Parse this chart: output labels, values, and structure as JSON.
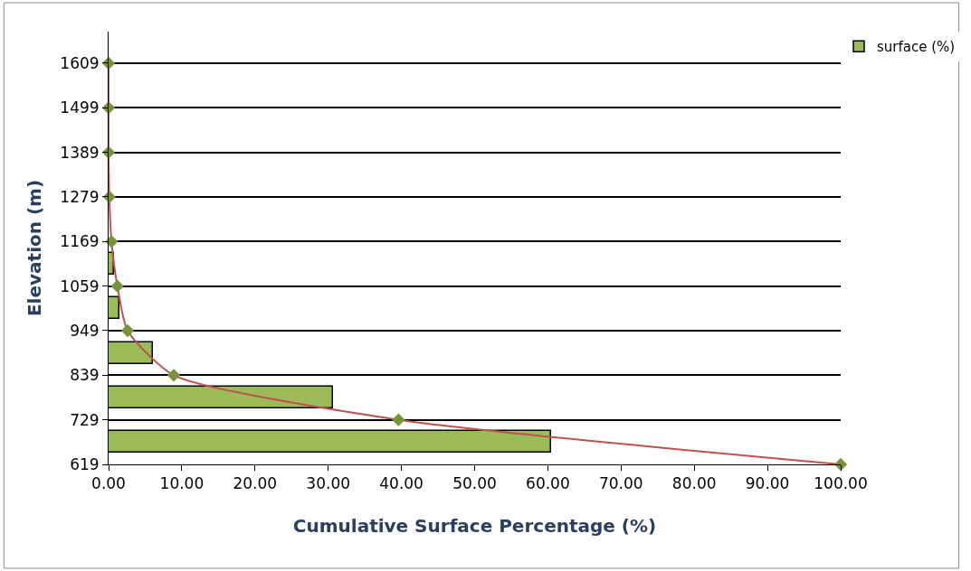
{
  "chart_data": {
    "type": "bar",
    "orientation": "horizontal",
    "xlabel": "Cumulative Surface Percentage (%)",
    "ylabel": "Elevation (m)",
    "xlim": [
      0,
      100
    ],
    "xticks": [
      {
        "value": 0,
        "label": "0.00"
      },
      {
        "value": 10,
        "label": "10.00"
      },
      {
        "value": 20,
        "label": "20.00"
      },
      {
        "value": 30,
        "label": "30.00"
      },
      {
        "value": 40,
        "label": "40.00"
      },
      {
        "value": 50,
        "label": "50.00"
      },
      {
        "value": 60,
        "label": "60.00"
      },
      {
        "value": 70,
        "label": "70.00"
      },
      {
        "value": 80,
        "label": "80.00"
      },
      {
        "value": 90,
        "label": "90.00"
      },
      {
        "value": 100,
        "label": "100.00"
      }
    ],
    "ylim": [
      619,
      1687
    ],
    "yticks": [
      619,
      729,
      839,
      949,
      1059,
      1169,
      1279,
      1389,
      1499,
      1609
    ],
    "series": [
      {
        "name": "surface (%)",
        "color": "#9bbb59",
        "x": [
          674,
          784,
          894,
          1004,
          1114
        ],
        "values": [
          60.5,
          30.7,
          6.1,
          1.5,
          0.7
        ]
      },
      {
        "type": "line",
        "color": "#c0504d",
        "marker": "diamond",
        "x": [
          619,
          729,
          839,
          949,
          1059,
          1169,
          1279,
          1389,
          1499,
          1609
        ],
        "values": [
          100,
          39.6,
          8.9,
          2.6,
          1.2,
          0.4,
          0.1,
          0,
          0,
          0
        ]
      }
    ],
    "grid": "y",
    "legend": "top right"
  }
}
